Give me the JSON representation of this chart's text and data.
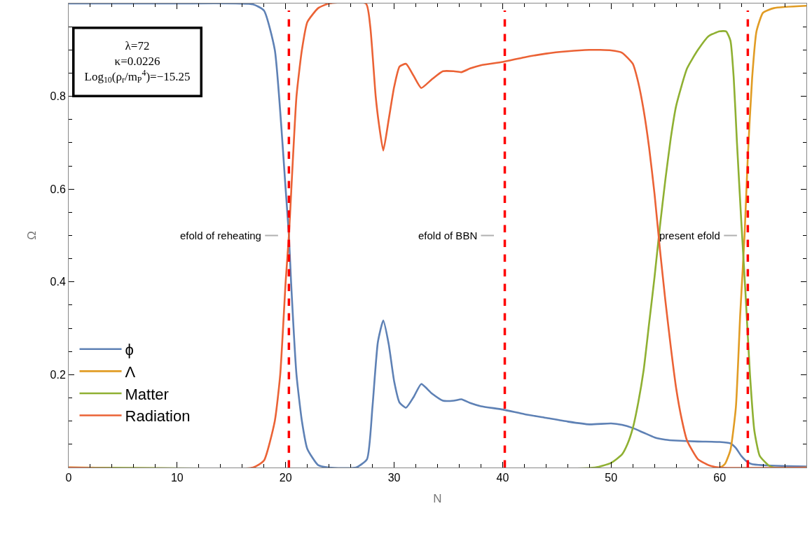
{
  "chart_data": {
    "type": "line",
    "xlabel": "N",
    "ylabel": "Ω",
    "xlim": [
      0,
      68
    ],
    "ylim": [
      0,
      1.0
    ],
    "xticks": [
      0,
      10,
      20,
      30,
      40,
      50,
      60
    ],
    "yticks": [
      0.2,
      0.4,
      0.6,
      0.8
    ],
    "legend": "bottom left",
    "line_style": "solid",
    "marker": "none",
    "series": [
      {
        "name": "ϕ",
        "color": "#5e81b5",
        "x": [
          0,
          10,
          17,
          18,
          19,
          20,
          20.3,
          20.5,
          21,
          21.5,
          22,
          23,
          24,
          26.5,
          27.5,
          28,
          28.5,
          29,
          29.5,
          30,
          30.5,
          31.1,
          31.8,
          32.5,
          33.5,
          34.5,
          35.5,
          36.2,
          37,
          38,
          40,
          42,
          44,
          46,
          48,
          50,
          51,
          52,
          53,
          54,
          55,
          56,
          58,
          60,
          61,
          61.5,
          62,
          62.5,
          63,
          64,
          68
        ],
        "values": [
          1.0,
          1.0,
          0.998,
          0.985,
          0.9,
          0.6,
          0.5,
          0.4,
          0.2,
          0.1,
          0.04,
          0.005,
          0,
          0,
          0.018,
          0.13,
          0.27,
          0.317,
          0.266,
          0.186,
          0.14,
          0.129,
          0.152,
          0.18,
          0.159,
          0.144,
          0.144,
          0.147,
          0.139,
          0.132,
          0.125,
          0.115,
          0.107,
          0.099,
          0.093,
          0.095,
          0.092,
          0.085,
          0.075,
          0.065,
          0.06,
          0.058,
          0.056,
          0.055,
          0.052,
          0.042,
          0.025,
          0.013,
          0.007,
          0.005,
          0.002
        ]
      },
      {
        "name": "Λ",
        "color": "#e19c24",
        "x": [
          0,
          60,
          60.5,
          61,
          61.5,
          61.9,
          62.3,
          62.6,
          63,
          63.4,
          64,
          65,
          68
        ],
        "values": [
          0,
          0,
          0.008,
          0.038,
          0.13,
          0.33,
          0.5,
          0.67,
          0.84,
          0.94,
          0.98,
          0.99,
          0.995
        ]
      },
      {
        "name": "Matter",
        "color": "#8fb032",
        "x": [
          0,
          48.5,
          50,
          51,
          51.5,
          52,
          52.5,
          53,
          53.5,
          54,
          54.5,
          55,
          55.5,
          56,
          57,
          58,
          59,
          60,
          60.6,
          61,
          61.3,
          61.6,
          62,
          62.4,
          62.8,
          63.2,
          63.7,
          64.5,
          65,
          68
        ],
        "values": [
          0,
          0,
          0.01,
          0.028,
          0.05,
          0.085,
          0.14,
          0.21,
          0.31,
          0.41,
          0.52,
          0.62,
          0.71,
          0.78,
          0.86,
          0.9,
          0.93,
          0.94,
          0.94,
          0.92,
          0.84,
          0.7,
          0.53,
          0.37,
          0.2,
          0.08,
          0.025,
          0.005,
          0,
          0
        ]
      },
      {
        "name": "Radiation",
        "color": "#eb6235",
        "x": [
          0,
          17,
          18,
          19,
          19.5,
          20,
          20.3,
          21,
          21.5,
          22,
          23,
          24,
          27.4,
          27.8,
          28.3,
          28.6,
          29,
          29.5,
          30,
          30.5,
          31.1,
          31.8,
          32.5,
          33.5,
          34.5,
          35.5,
          36.2,
          37,
          38,
          40,
          42,
          44,
          46,
          48,
          49,
          50,
          51,
          52,
          52.5,
          53,
          53.5,
          54,
          54.5,
          55,
          55.5,
          56,
          56.5,
          57,
          58,
          59,
          60,
          68
        ],
        "values": [
          0,
          0,
          0.015,
          0.1,
          0.2,
          0.4,
          0.5,
          0.8,
          0.9,
          0.96,
          0.99,
          1.0,
          1.0,
          0.95,
          0.8,
          0.74,
          0.683,
          0.75,
          0.82,
          0.864,
          0.87,
          0.844,
          0.818,
          0.837,
          0.854,
          0.854,
          0.852,
          0.86,
          0.867,
          0.874,
          0.884,
          0.892,
          0.897,
          0.9,
          0.9,
          0.899,
          0.894,
          0.87,
          0.83,
          0.77,
          0.69,
          0.59,
          0.47,
          0.36,
          0.26,
          0.17,
          0.105,
          0.058,
          0.018,
          0.005,
          0,
          0
        ]
      }
    ],
    "ref_lines": [
      {
        "axis": "x",
        "value": 20.3,
        "label": "efold of reheating",
        "color": "#ff0000",
        "line_style": "dashed"
      },
      {
        "axis": "x",
        "value": 40.2,
        "label": "efold of BBN",
        "color": "#ff0000",
        "line_style": "dashed"
      },
      {
        "axis": "x",
        "value": 62.6,
        "label": "present efold",
        "color": "#ff0000",
        "line_style": "dashed"
      }
    ],
    "annotations": [
      "λ=72\nκ=0.0226\nLog$_{10}$(ρ$_{r}$/m$_{P}$$^{4}$)=−15.25"
    ]
  }
}
